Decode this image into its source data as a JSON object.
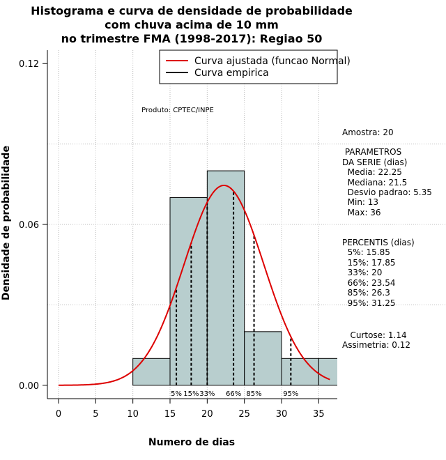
{
  "chart_data": {
    "type": "histogram",
    "title_lines": [
      "Histograma e curva de densidade de probabilidade",
      "com chuva acima de 10 mm",
      "no trimestre FMA (1998-2017): Regiao 50"
    ],
    "xlabel": "Numero de dias",
    "ylabel": "Densidade de probabilidade",
    "xlim": [
      -1.5,
      37.5
    ],
    "ylim": [
      -0.005,
      0.125
    ],
    "xticks": [
      0,
      5,
      10,
      15,
      20,
      25,
      30,
      35
    ],
    "yticks": [
      0.0,
      0.06,
      0.12
    ],
    "ytick_labels": [
      "0.00",
      "0.06",
      "0.12"
    ],
    "bins": [
      {
        "start": 10,
        "end": 15,
        "density": 0.01
      },
      {
        "start": 15,
        "end": 20,
        "density": 0.07
      },
      {
        "start": 20,
        "end": 25,
        "density": 0.08
      },
      {
        "start": 25,
        "end": 30,
        "density": 0.02
      },
      {
        "start": 30,
        "end": 35,
        "density": 0.01
      },
      {
        "start": 35,
        "end": 40,
        "density": 0.01
      }
    ],
    "bar_color": "#b8cece",
    "normal_fit": {
      "mean": 22.25,
      "sd": 5.35,
      "x_start": 0,
      "x_end": 36.5,
      "color": "#dd0000"
    },
    "percentile_lines": [
      {
        "label": "5%",
        "x": 15.85
      },
      {
        "label": "15%",
        "x": 17.85
      },
      {
        "label": "33%",
        "x": 20
      },
      {
        "label": "66%",
        "x": 23.54
      },
      {
        "label": "85%",
        "x": 26.3
      },
      {
        "label": "95%",
        "x": 31.25
      }
    ],
    "legend": [
      {
        "label": "Curva ajustada (funcao Normal)",
        "color": "#dd0000"
      },
      {
        "label": "Curva empirica",
        "color": "#000000"
      }
    ],
    "product_label": "Produto: CPTEC/INPE"
  },
  "stats": {
    "sample": "Amostra: 20",
    "params_header": [
      " PARAMETROS",
      "DA SERIE (dias)"
    ],
    "params": [
      "  Media: 22.25",
      "  Mediana: 21.5",
      "  Desvio padrao: 5.35",
      "  Min: 13",
      "  Max: 36"
    ],
    "percentile_header": "PERCENTIS (dias)",
    "percentiles": [
      "  5%: 15.85",
      "  15%: 17.85",
      "  33%: 20",
      "  66%: 23.54",
      "  85%: 26.3",
      "  95%: 31.25"
    ],
    "kurtosis": "   Curtose: 1.14",
    "skewness": "Assimetria: 0.12"
  }
}
